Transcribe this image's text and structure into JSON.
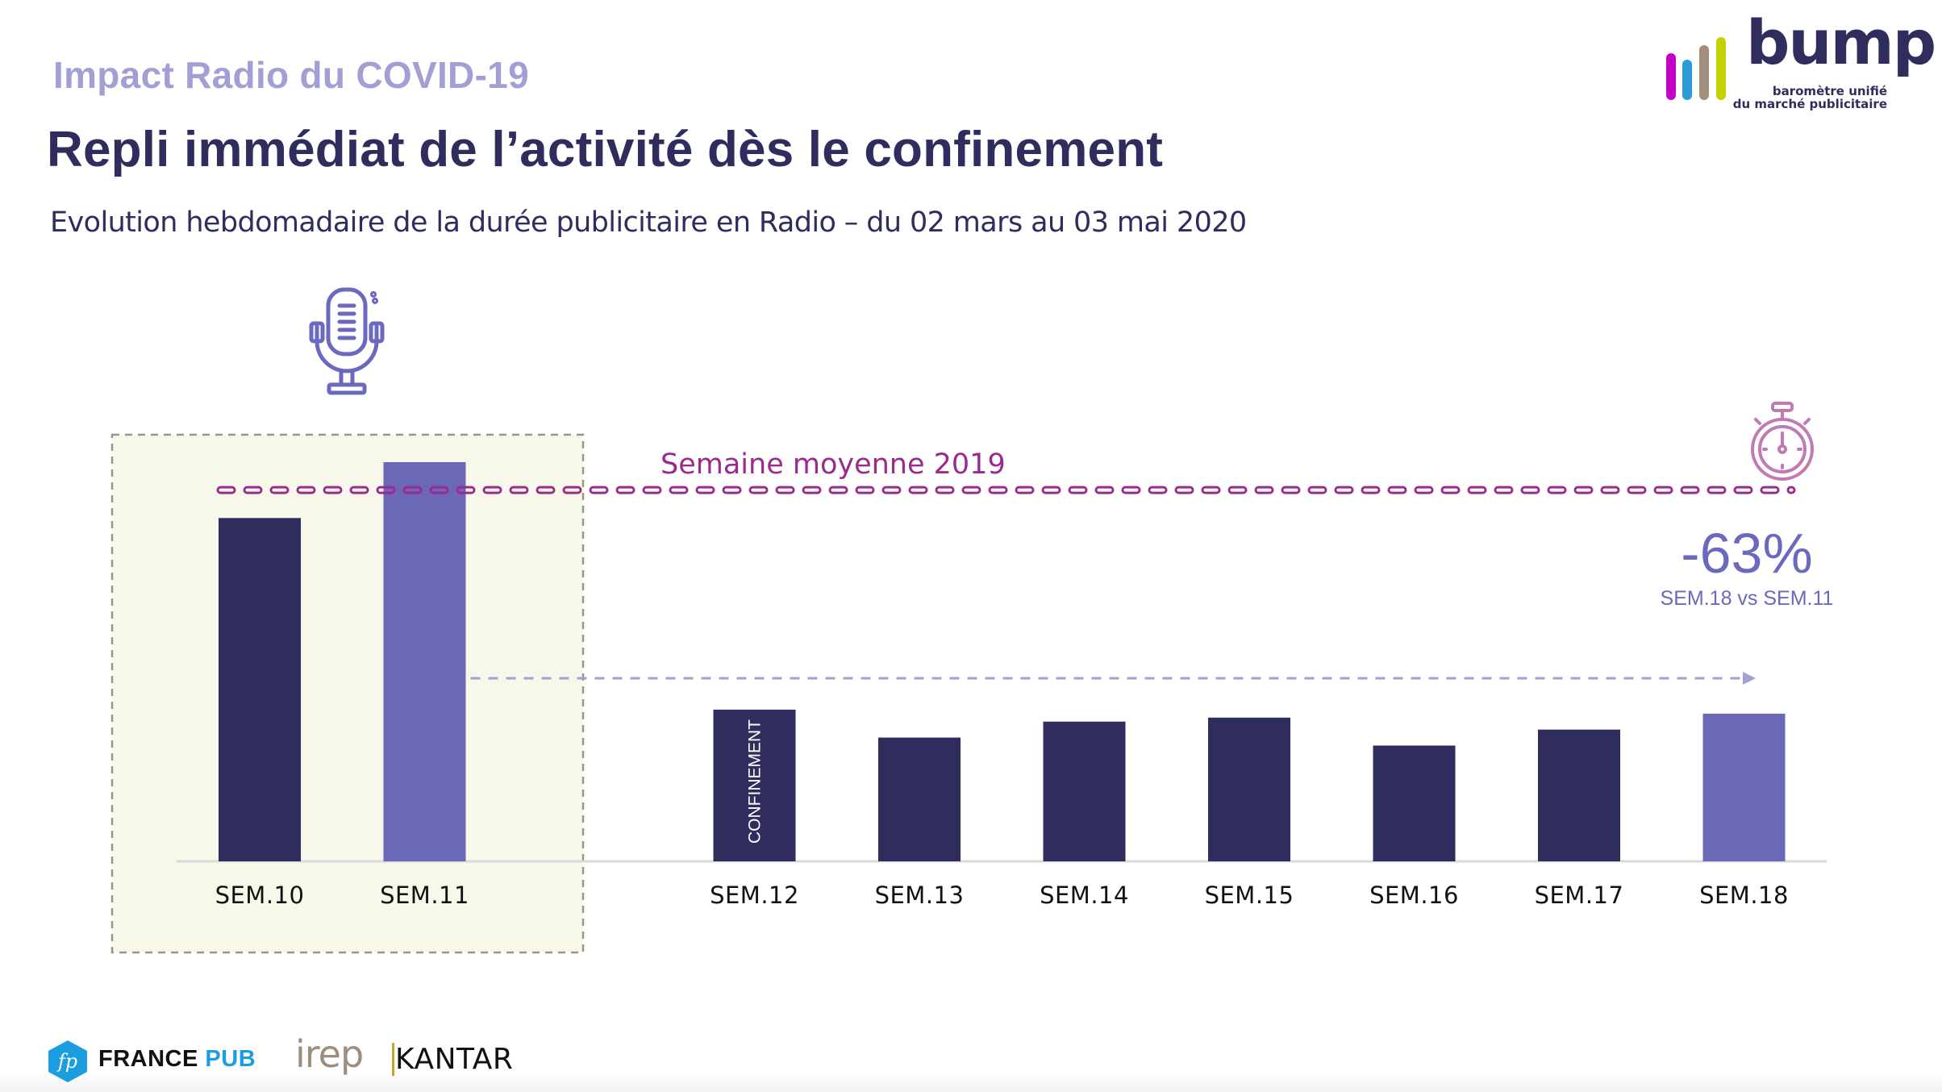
{
  "header": {
    "kicker": "Impact Radio du COVID-19",
    "title": "Repli immédiat de l’activité dès le confinement",
    "subtitle": "Evolution hebdomadaire de la durée publicitaire en Radio – du 02 mars au 03 mai 2020"
  },
  "logo": {
    "word": "bump",
    "tagline_line1": "baromètre unifié",
    "tagline_line2": "du marché publicitaire",
    "bar_colors": [
      "#c400c8",
      "#2a9bd8",
      "#a38f7c",
      "#c4d300"
    ]
  },
  "icons": {
    "left": "microphone-icon",
    "right": "stopwatch-icon"
  },
  "colors": {
    "bar_dark": "#2e2d5e",
    "bar_highlight": "#6b68b8",
    "avg_line": "#9b2a8e",
    "arrow": "#a29fd5",
    "precovid_box_bg": "#f7f8ea",
    "precovid_box_border": "#a09488",
    "axis": "#d9d9d9"
  },
  "chart_data": {
    "type": "bar",
    "title": "Evolution hebdomadaire de la durée publicitaire en Radio – du 02 mars au 03 mai 2020",
    "xlabel": "",
    "ylabel": "",
    "y_unit": "relative index (SEM.11 = 100), estimated from bar heights; no y-axis shown",
    "ylim": [
      0,
      110
    ],
    "grid": false,
    "categories": [
      "SEM.10",
      "SEM.11",
      "SEM.12",
      "SEM.13",
      "SEM.14",
      "SEM.15",
      "SEM.16",
      "SEM.17",
      "SEM.18"
    ],
    "values": [
      86,
      100,
      38,
      31,
      35,
      36,
      29,
      33,
      37
    ],
    "highlighted": [
      "SEM.11",
      "SEM.18"
    ],
    "gap_after": "SEM.11",
    "precovid_group": [
      "SEM.10",
      "SEM.11"
    ],
    "bar_annotations": [
      {
        "category": "SEM.12",
        "text": "CONFINEMENT"
      }
    ],
    "reference_line": {
      "label": "Semaine moyenne 2019",
      "value": 93
    },
    "comparison": {
      "from": "SEM.11",
      "to": "SEM.18",
      "value": "-63%",
      "caption": "SEM.18 vs SEM.11"
    }
  },
  "footer": {
    "logos": [
      {
        "name": "FRANCE",
        "accent": "PUB",
        "badge": "fp"
      },
      {
        "name": "irep"
      },
      {
        "name": "KANTAR"
      }
    ]
  }
}
